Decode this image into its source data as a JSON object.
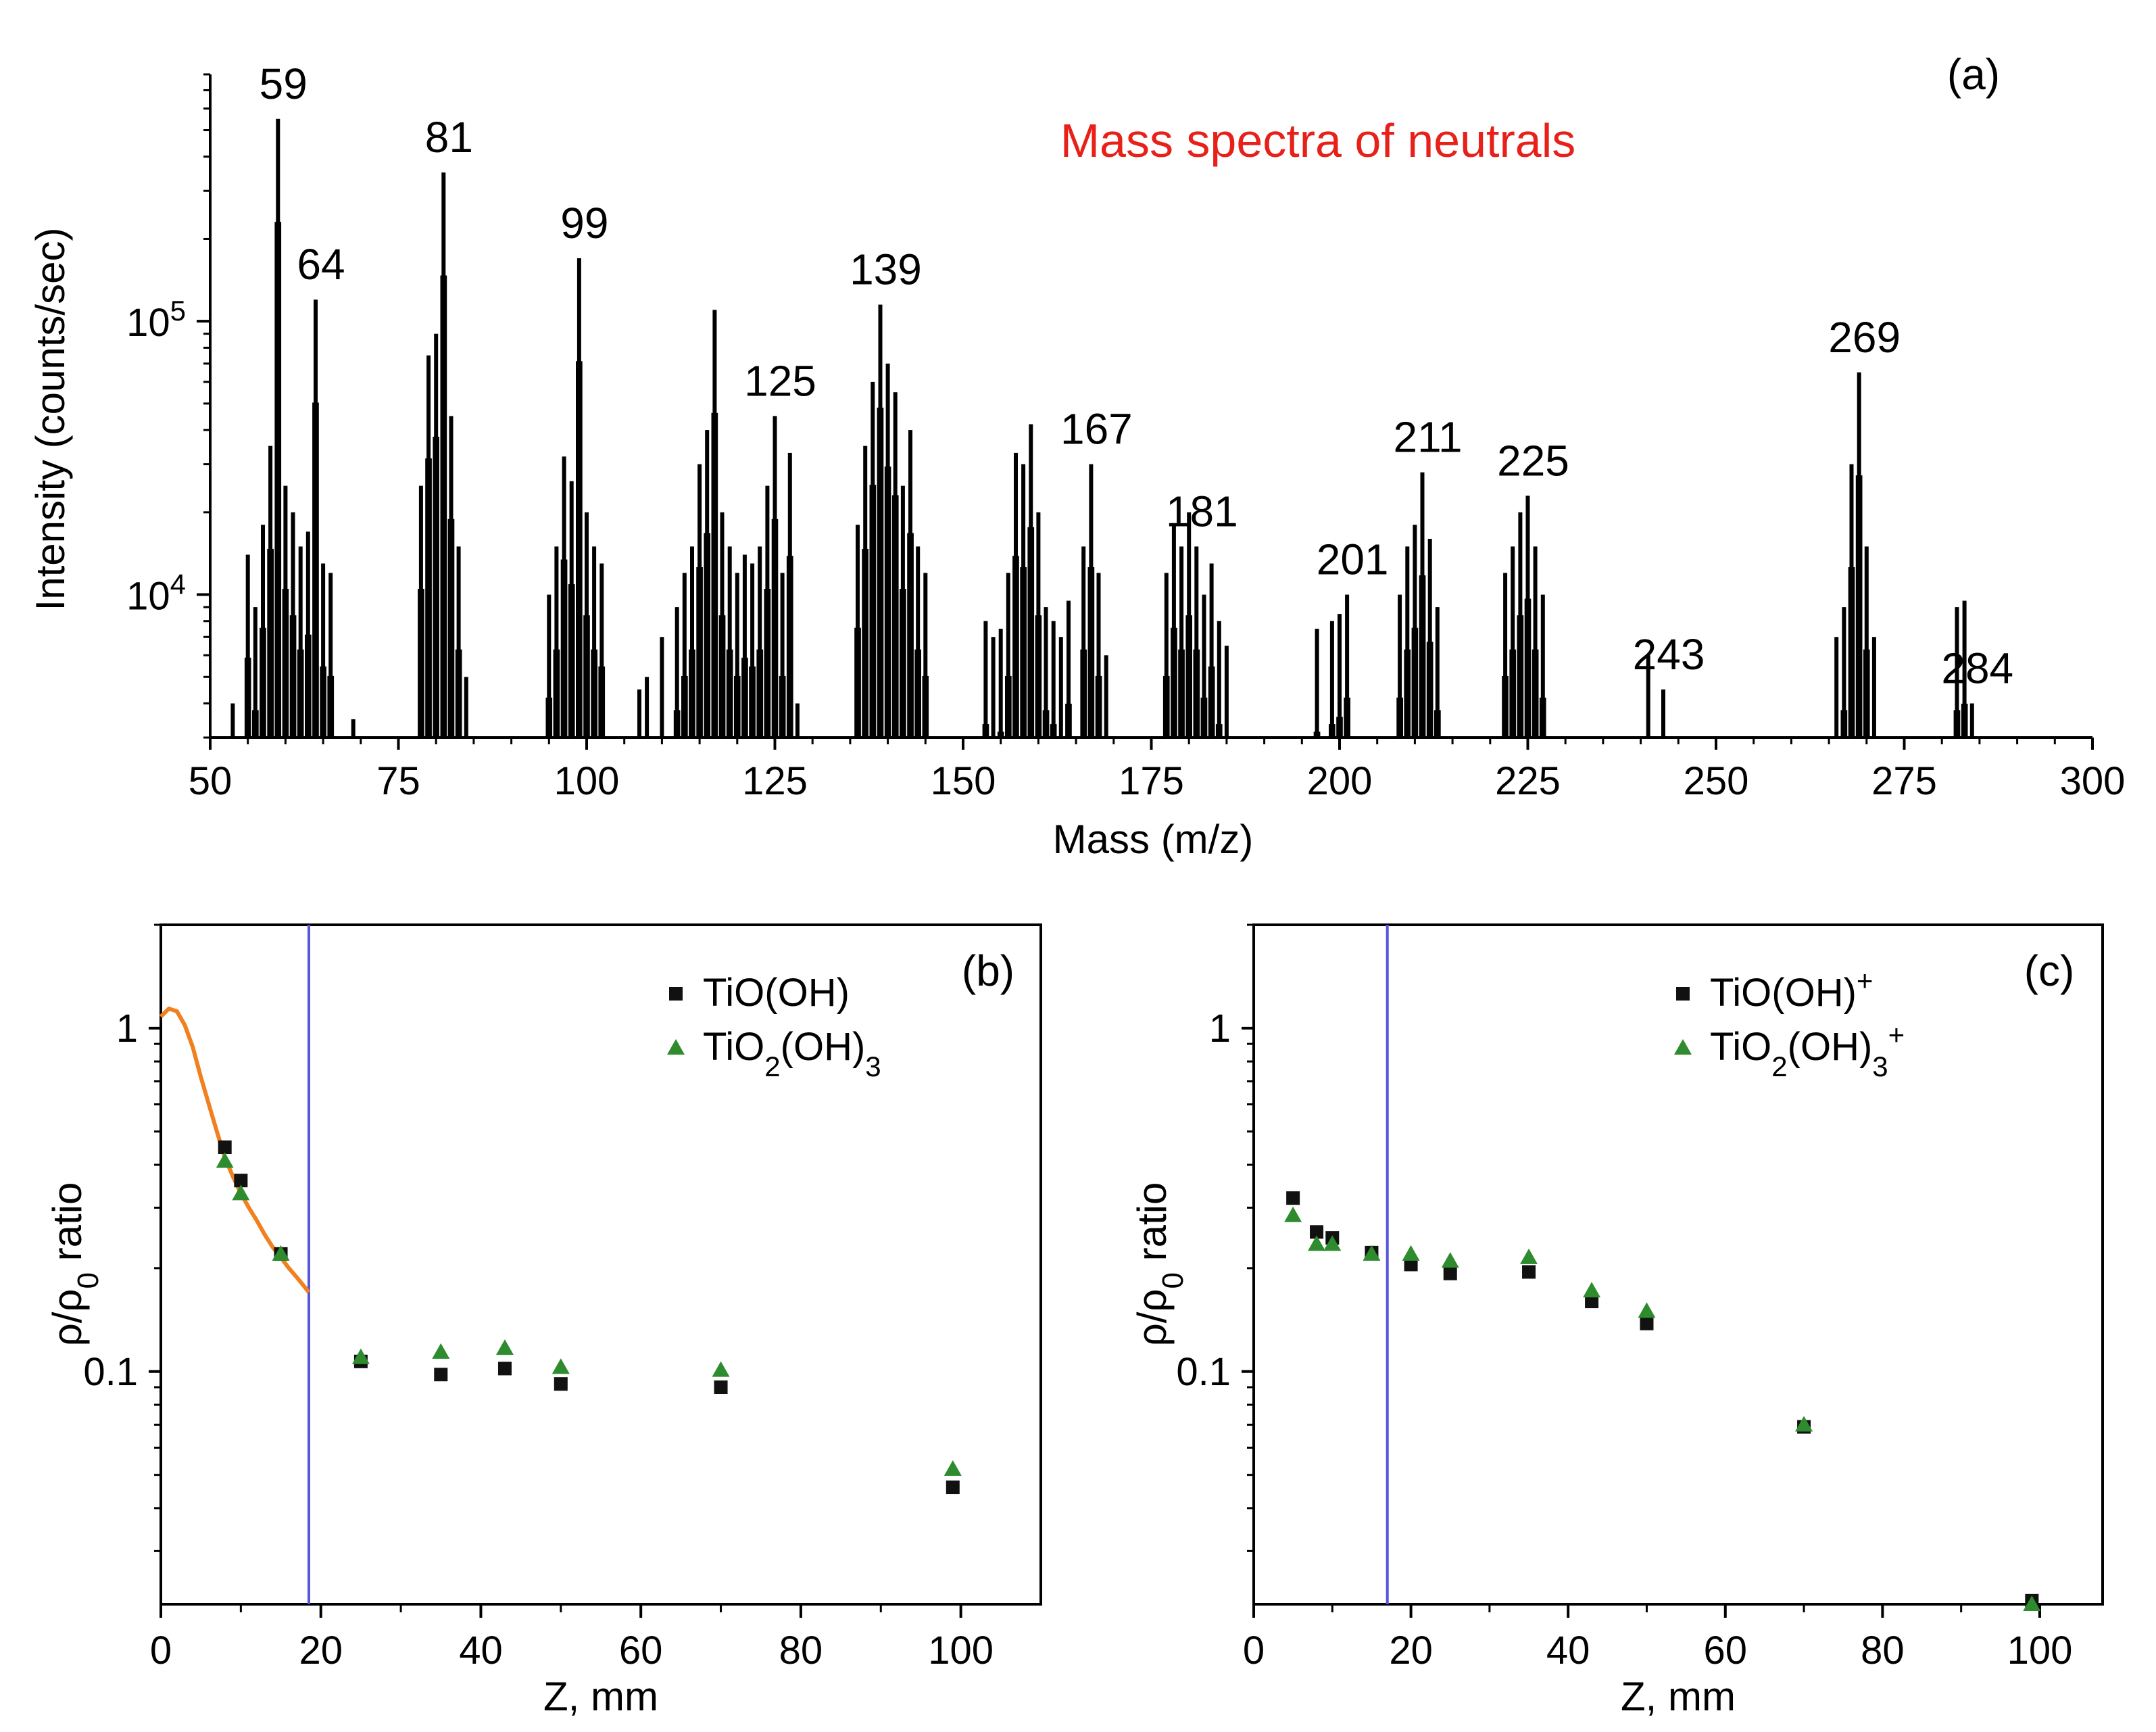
{
  "chart_data": [
    {
      "panel": "(a)",
      "type": "bar",
      "title": "Mass spectra of neutrals",
      "title_color": "#e8201a",
      "xlabel": "Mass (m/z)",
      "ylabel": "Intensity (counts/sec)",
      "yscale": "log",
      "xlim": [
        50,
        300
      ],
      "ylim": [
        3000,
        800000
      ],
      "xticks": [
        "50",
        "75",
        "100",
        "125",
        "150",
        "175",
        "200",
        "225",
        "250",
        "275",
        "300"
      ],
      "yticks": [
        {
          "base": "10",
          "exp": "4",
          "value": 10000
        },
        {
          "base": "10",
          "exp": "5",
          "value": 100000
        }
      ],
      "peak_labels": [
        {
          "mass": 59,
          "label": "59"
        },
        {
          "mass": 64,
          "label": "64"
        },
        {
          "mass": 81,
          "label": "81"
        },
        {
          "mass": 99,
          "label": "99"
        },
        {
          "mass": 125,
          "label": "125"
        },
        {
          "mass": 139,
          "label": "139"
        },
        {
          "mass": 167,
          "label": "167"
        },
        {
          "mass": 181,
          "label": "181"
        },
        {
          "mass": 201,
          "label": "201"
        },
        {
          "mass": 211,
          "label": "211"
        },
        {
          "mass": 225,
          "label": "225"
        },
        {
          "mass": 243,
          "label": "243"
        },
        {
          "mass": 269,
          "label": "269"
        },
        {
          "mass": 284,
          "label": "284"
        }
      ],
      "peaks": [
        {
          "mass": 53,
          "value": 4000
        },
        {
          "mass": 55,
          "value": 14000
        },
        {
          "mass": 56,
          "value": 9000
        },
        {
          "mass": 57,
          "value": 18000
        },
        {
          "mass": 58,
          "value": 35000
        },
        {
          "mass": 59,
          "value": 550000
        },
        {
          "mass": 60,
          "value": 25000
        },
        {
          "mass": 61,
          "value": 20000
        },
        {
          "mass": 62,
          "value": 15000
        },
        {
          "mass": 63,
          "value": 17000
        },
        {
          "mass": 64,
          "value": 120000
        },
        {
          "mass": 65,
          "value": 13000
        },
        {
          "mass": 66,
          "value": 12000
        },
        {
          "mass": 69,
          "value": 3500
        },
        {
          "mass": 78,
          "value": 25000
        },
        {
          "mass": 79,
          "value": 75000
        },
        {
          "mass": 80,
          "value": 90000
        },
        {
          "mass": 81,
          "value": 350000
        },
        {
          "mass": 82,
          "value": 45000
        },
        {
          "mass": 83,
          "value": 15000
        },
        {
          "mass": 84,
          "value": 5000
        },
        {
          "mass": 95,
          "value": 10000
        },
        {
          "mass": 96,
          "value": 15000
        },
        {
          "mass": 97,
          "value": 32000
        },
        {
          "mass": 98,
          "value": 26000
        },
        {
          "mass": 99,
          "value": 170000
        },
        {
          "mass": 100,
          "value": 20000
        },
        {
          "mass": 101,
          "value": 15000
        },
        {
          "mass": 102,
          "value": 13000
        },
        {
          "mass": 107,
          "value": 4500
        },
        {
          "mass": 108,
          "value": 5000
        },
        {
          "mass": 110,
          "value": 7000
        },
        {
          "mass": 112,
          "value": 9000
        },
        {
          "mass": 113,
          "value": 12000
        },
        {
          "mass": 114,
          "value": 15000
        },
        {
          "mass": 115,
          "value": 30000
        },
        {
          "mass": 116,
          "value": 40000
        },
        {
          "mass": 117,
          "value": 110000
        },
        {
          "mass": 118,
          "value": 20000
        },
        {
          "mass": 119,
          "value": 15000
        },
        {
          "mass": 120,
          "value": 12000
        },
        {
          "mass": 121,
          "value": 14000
        },
        {
          "mass": 122,
          "value": 13000
        },
        {
          "mass": 123,
          "value": 15000
        },
        {
          "mass": 124,
          "value": 25000
        },
        {
          "mass": 125,
          "value": 45000
        },
        {
          "mass": 126,
          "value": 12000
        },
        {
          "mass": 127,
          "value": 33000
        },
        {
          "mass": 128,
          "value": 4000
        },
        {
          "mass": 136,
          "value": 18000
        },
        {
          "mass": 137,
          "value": 35000
        },
        {
          "mass": 138,
          "value": 60000
        },
        {
          "mass": 139,
          "value": 115000
        },
        {
          "mass": 140,
          "value": 70000
        },
        {
          "mass": 141,
          "value": 55000
        },
        {
          "mass": 142,
          "value": 25000
        },
        {
          "mass": 143,
          "value": 40000
        },
        {
          "mass": 144,
          "value": 15000
        },
        {
          "mass": 145,
          "value": 12000
        },
        {
          "mass": 153,
          "value": 8000
        },
        {
          "mass": 154,
          "value": 7000
        },
        {
          "mass": 155,
          "value": 7500
        },
        {
          "mass": 156,
          "value": 12000
        },
        {
          "mass": 157,
          "value": 33000
        },
        {
          "mass": 158,
          "value": 30000
        },
        {
          "mass": 159,
          "value": 42000
        },
        {
          "mass": 160,
          "value": 20000
        },
        {
          "mass": 161,
          "value": 9000
        },
        {
          "mass": 162,
          "value": 8000
        },
        {
          "mass": 163,
          "value": 7000
        },
        {
          "mass": 164,
          "value": 9500
        },
        {
          "mass": 166,
          "value": 15000
        },
        {
          "mass": 167,
          "value": 30000
        },
        {
          "mass": 168,
          "value": 12000
        },
        {
          "mass": 169,
          "value": 6000
        },
        {
          "mass": 177,
          "value": 12000
        },
        {
          "mass": 178,
          "value": 18000
        },
        {
          "mass": 179,
          "value": 15000
        },
        {
          "mass": 180,
          "value": 20000
        },
        {
          "mass": 181,
          "value": 15000
        },
        {
          "mass": 182,
          "value": 10000
        },
        {
          "mass": 183,
          "value": 13000
        },
        {
          "mass": 184,
          "value": 8000
        },
        {
          "mass": 185,
          "value": 6500
        },
        {
          "mass": 197,
          "value": 7500
        },
        {
          "mass": 199,
          "value": 8000
        },
        {
          "mass": 200,
          "value": 8500
        },
        {
          "mass": 201,
          "value": 10000
        },
        {
          "mass": 208,
          "value": 10000
        },
        {
          "mass": 209,
          "value": 15000
        },
        {
          "mass": 210,
          "value": 18000
        },
        {
          "mass": 211,
          "value": 28000
        },
        {
          "mass": 212,
          "value": 16000
        },
        {
          "mass": 213,
          "value": 9000
        },
        {
          "mass": 222,
          "value": 12000
        },
        {
          "mass": 223,
          "value": 15000
        },
        {
          "mass": 224,
          "value": 20000
        },
        {
          "mass": 225,
          "value": 23000
        },
        {
          "mass": 226,
          "value": 15000
        },
        {
          "mass": 227,
          "value": 10000
        },
        {
          "mass": 241,
          "value": 6000
        },
        {
          "mass": 243,
          "value": 4500
        },
        {
          "mass": 266,
          "value": 7000
        },
        {
          "mass": 267,
          "value": 9000
        },
        {
          "mass": 268,
          "value": 30000
        },
        {
          "mass": 269,
          "value": 65000
        },
        {
          "mass": 270,
          "value": 15000
        },
        {
          "mass": 271,
          "value": 7000
        },
        {
          "mass": 282,
          "value": 9000
        },
        {
          "mass": 283,
          "value": 9500
        },
        {
          "mass": 284,
          "value": 4000
        }
      ]
    },
    {
      "panel": "(b)",
      "type": "scatter",
      "xlabel": "Z, mm",
      "ylabel": "ρ/ρ0 ratio",
      "yscale": "log",
      "xlim": [
        0,
        110
      ],
      "ylim": [
        0.021,
        2.0
      ],
      "xticks": [
        "0",
        "20",
        "40",
        "60",
        "80",
        "100"
      ],
      "yticks": [
        {
          "label": "1",
          "value": 1
        },
        {
          "label": "0.1",
          "value": 0.1
        }
      ],
      "vline_x": 18.5,
      "vline_color": "#5555e0",
      "fit_color": "#f08020",
      "fit_curve": {
        "x": [
          0,
          1,
          2,
          3,
          4,
          5,
          6,
          7,
          8,
          9,
          10,
          11,
          12,
          13,
          14,
          15,
          16,
          17,
          18,
          18.5
        ],
        "y": [
          1.08,
          1.14,
          1.12,
          1.02,
          0.88,
          0.72,
          0.6,
          0.5,
          0.42,
          0.37,
          0.33,
          0.3,
          0.275,
          0.25,
          0.23,
          0.215,
          0.2,
          0.188,
          0.176,
          0.17
        ]
      },
      "series": [
        {
          "name": "TiO(OH)",
          "marker": "square",
          "color": "#111111",
          "x": [
            8,
            10,
            15,
            25,
            35,
            43,
            50,
            70,
            99
          ],
          "y": [
            0.45,
            0.36,
            0.22,
            0.107,
            0.098,
            0.102,
            0.092,
            0.09,
            0.046
          ]
        },
        {
          "name": "TiO2(OH)3",
          "marker": "triangle",
          "color": "#2e8b2e",
          "x": [
            8,
            10,
            15,
            25,
            35,
            43,
            50,
            70,
            99
          ],
          "y": [
            0.41,
            0.33,
            0.22,
            0.11,
            0.114,
            0.117,
            0.103,
            0.101,
            0.052
          ]
        }
      ],
      "legend": [
        {
          "base": "TiO(OH)",
          "parts": []
        },
        {
          "base": "TiO",
          "parts": [
            {
              "t": "2",
              "sub": true
            },
            {
              "t": "(OH)",
              "sub": false
            },
            {
              "t": "3",
              "sub": true
            }
          ]
        }
      ]
    },
    {
      "panel": "(c)",
      "type": "scatter",
      "xlabel": "Z, mm",
      "ylabel": "ρ/ρ0 ratio",
      "yscale": "log",
      "xlim": [
        0,
        108
      ],
      "ylim": [
        0.021,
        2.0
      ],
      "xticks": [
        "0",
        "20",
        "40",
        "60",
        "80",
        "100"
      ],
      "yticks": [
        {
          "label": "1",
          "value": 1
        },
        {
          "label": "0.1",
          "value": 0.1
        }
      ],
      "vline_x": 17,
      "vline_color": "#5555e0",
      "series": [
        {
          "name": "TiO(OH)+",
          "marker": "square",
          "color": "#111111",
          "x": [
            5,
            8,
            10,
            15,
            20,
            25,
            35,
            43,
            50,
            70,
            99
          ],
          "y": [
            0.32,
            0.255,
            0.245,
            0.222,
            0.205,
            0.193,
            0.195,
            0.16,
            0.138,
            0.069,
            0.0215
          ]
        },
        {
          "name": "TiO2(OH)3+",
          "marker": "triangle",
          "color": "#2e8b2e",
          "x": [
            5,
            8,
            10,
            15,
            20,
            25,
            35,
            43,
            50,
            70,
            99
          ],
          "y": [
            0.285,
            0.235,
            0.235,
            0.22,
            0.22,
            0.21,
            0.215,
            0.172,
            0.15,
            0.07,
            0.021
          ]
        }
      ],
      "legend": [
        {
          "base": "TiO(OH)",
          "parts": [
            {
              "t": "+",
              "sup": true
            }
          ]
        },
        {
          "base": "TiO",
          "parts": [
            {
              "t": "2",
              "sub": true
            },
            {
              "t": "(OH)",
              "sub": false
            },
            {
              "t": "3",
              "sub": true
            },
            {
              "t": "+",
              "sup": true
            }
          ]
        }
      ]
    }
  ]
}
